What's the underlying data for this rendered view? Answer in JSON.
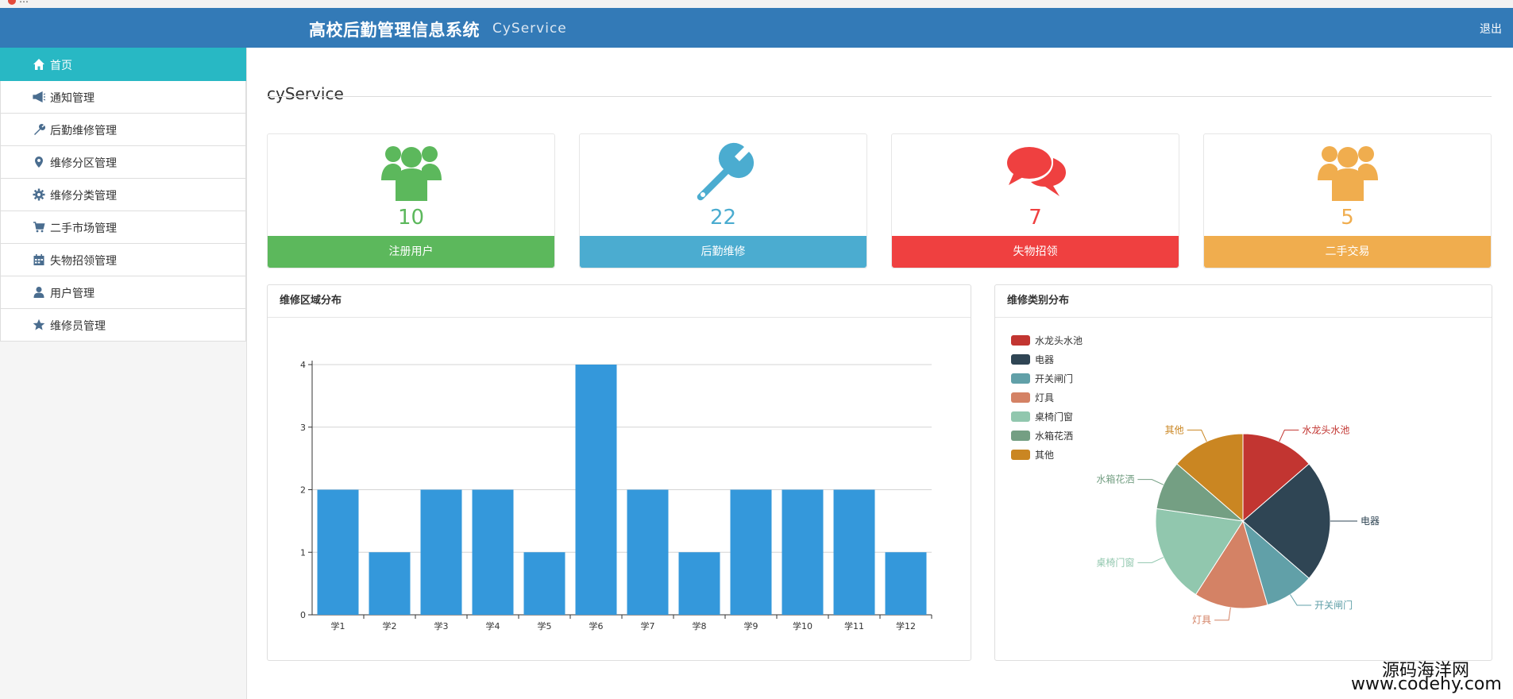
{
  "browser": {
    "tab_title": "…"
  },
  "header": {
    "title": "高校后勤管理信息系统",
    "subtitle": "CyService",
    "logout": "退出"
  },
  "sidebar": {
    "items": [
      {
        "label": "首页",
        "icon": "home-icon",
        "active": true
      },
      {
        "label": "通知管理",
        "icon": "bullhorn-icon"
      },
      {
        "label": "后勤维修管理",
        "icon": "wrench-icon"
      },
      {
        "label": "维修分区管理",
        "icon": "map-marker-icon"
      },
      {
        "label": "维修分类管理",
        "icon": "gear-icon"
      },
      {
        "label": "二手市场管理",
        "icon": "cart-icon"
      },
      {
        "label": "失物招领管理",
        "icon": "calendar-icon"
      },
      {
        "label": "用户管理",
        "icon": "user-icon"
      },
      {
        "label": "维修员管理",
        "icon": "star-icon"
      }
    ]
  },
  "main": {
    "title": "cyService"
  },
  "stats": [
    {
      "value": "10",
      "label": "注册用户",
      "icon": "users-icon",
      "color": "#5cb85c"
    },
    {
      "value": "22",
      "label": "后勤维修",
      "icon": "wrench-icon",
      "color": "#4bacd0"
    },
    {
      "value": "7",
      "label": "失物招领",
      "icon": "comments-icon",
      "color": "#ef4040"
    },
    {
      "value": "5",
      "label": "二手交易",
      "icon": "users-icon",
      "color": "#f0ad4e"
    }
  ],
  "panels": {
    "bar_title": "维修区域分布",
    "pie_title": "维修类别分布"
  },
  "chart_data": [
    {
      "type": "bar",
      "categories": [
        "学1",
        "学2",
        "学3",
        "学4",
        "学5",
        "学6",
        "学7",
        "学8",
        "学9",
        "学10",
        "学11",
        "学12"
      ],
      "values": [
        2,
        1,
        2,
        2,
        1,
        4,
        2,
        1,
        2,
        2,
        2,
        1
      ],
      "ylim": [
        0,
        4
      ],
      "yticks": [
        "0",
        "1",
        "2",
        "3",
        "4"
      ],
      "color": "#3498db",
      "grid": true
    },
    {
      "type": "pie",
      "legend_position": "top-left",
      "labels": [
        "水龙头水池",
        "电器",
        "开关闸门",
        "灯具",
        "桌椅门窗",
        "水箱花洒",
        "其他"
      ],
      "values": [
        3,
        5,
        2,
        3,
        4,
        2,
        3
      ],
      "colors": [
        "#c23531",
        "#2f4554",
        "#61a0a8",
        "#d48265",
        "#91c7ae",
        "#749f83",
        "#ca8622"
      ]
    }
  ],
  "watermark": {
    "line1": "源码海洋网",
    "line2": "www.codehy.com"
  }
}
